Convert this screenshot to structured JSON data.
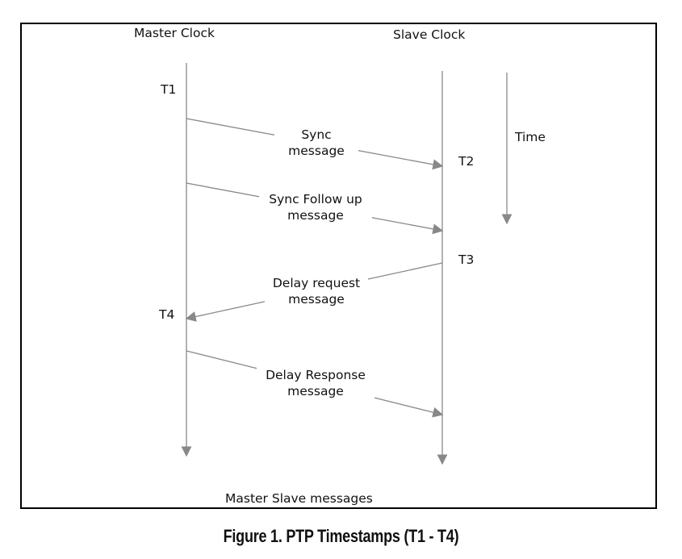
{
  "diagram": {
    "master_label": "Master Clock",
    "slave_label": "Slave Clock",
    "time_label": "Time",
    "footer_label": "Master Slave messages",
    "timestamps": {
      "t1": "T1",
      "t2": "T2",
      "t3": "T3",
      "t4": "T4"
    },
    "messages": [
      {
        "line1": "Sync",
        "line2": "message",
        "direction": "master-to-slave"
      },
      {
        "line1": "Sync Follow up",
        "line2": "message",
        "direction": "master-to-slave"
      },
      {
        "line1": "Delay request",
        "line2": "message",
        "direction": "slave-to-master"
      },
      {
        "line1": "Delay Response",
        "line2": "message",
        "direction": "master-to-slave"
      }
    ],
    "line_color": "#888888"
  },
  "caption": "Figure 1. PTP Timestamps (T1 - T4)"
}
